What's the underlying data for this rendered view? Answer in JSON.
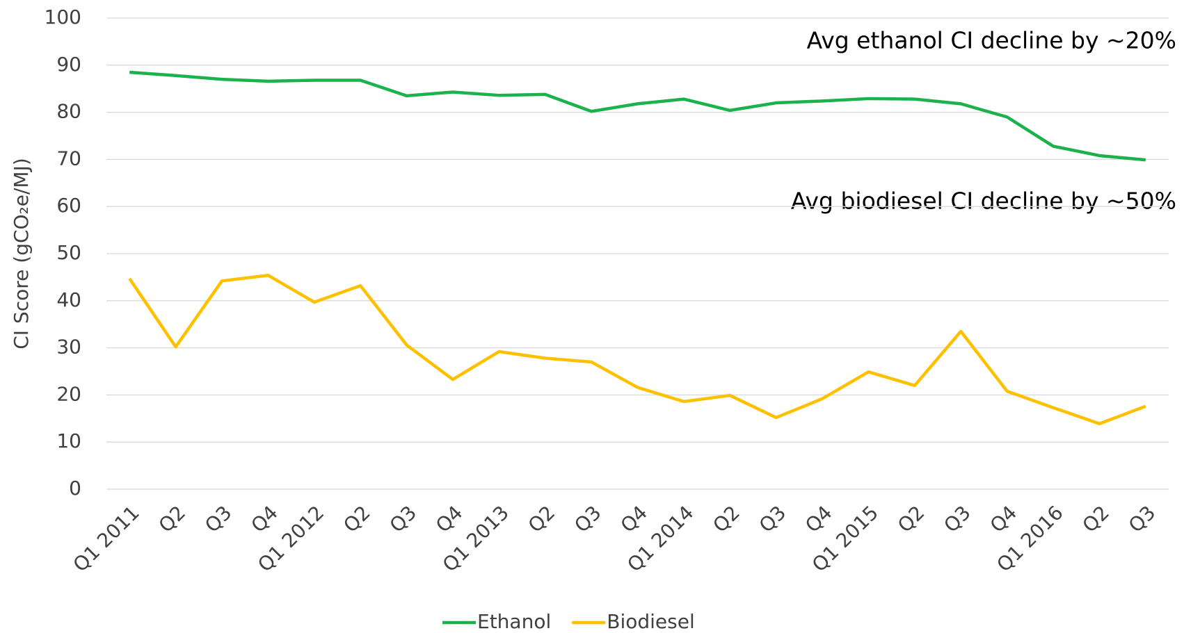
{
  "chart_data": {
    "type": "line",
    "y_label": "CI Score (gCO₂e/MJ)",
    "annotations": [
      "Avg ethanol CI decline by ~20%",
      "Avg biodiesel CI decline by ~50%"
    ],
    "categories": [
      "Q1 2011",
      "Q2",
      "Q3",
      "Q4",
      "Q1 2012",
      "Q2",
      "Q3",
      "Q4",
      "Q1 2013",
      "Q2",
      "Q3",
      "Q4",
      "Q1 2014",
      "Q2",
      "Q3",
      "Q4",
      "Q1 2015",
      "Q2",
      "Q3",
      "Q4",
      "Q1 2016",
      "Q2",
      "Q3"
    ],
    "series": [
      {
        "name": "Ethanol",
        "color": "#1bb24b",
        "values": [
          88.5,
          87.8,
          87,
          86.6,
          86.8,
          86.8,
          83.5,
          84.3,
          83.6,
          83.8,
          80.2,
          81.8,
          82.8,
          80.4,
          82,
          82.4,
          82.9,
          82.8,
          81.8,
          79,
          72.8,
          70.8,
          69.9
        ]
      },
      {
        "name": "Biodiesel",
        "color": "#ffc000",
        "values": [
          44.7,
          30.2,
          44.2,
          45.4,
          39.7,
          43.2,
          30.6,
          23.3,
          29.2,
          27.8,
          27,
          21.6,
          18.6,
          19.9,
          15.2,
          19.2,
          24.9,
          22,
          33.5,
          20.8,
          17.3,
          13.9,
          17.6
        ]
      }
    ],
    "ylim": [
      0,
      100
    ],
    "yticks": [
      0,
      10,
      20,
      30,
      40,
      50,
      60,
      70,
      80,
      90,
      100
    ],
    "grid": true,
    "legend": "bottom"
  }
}
